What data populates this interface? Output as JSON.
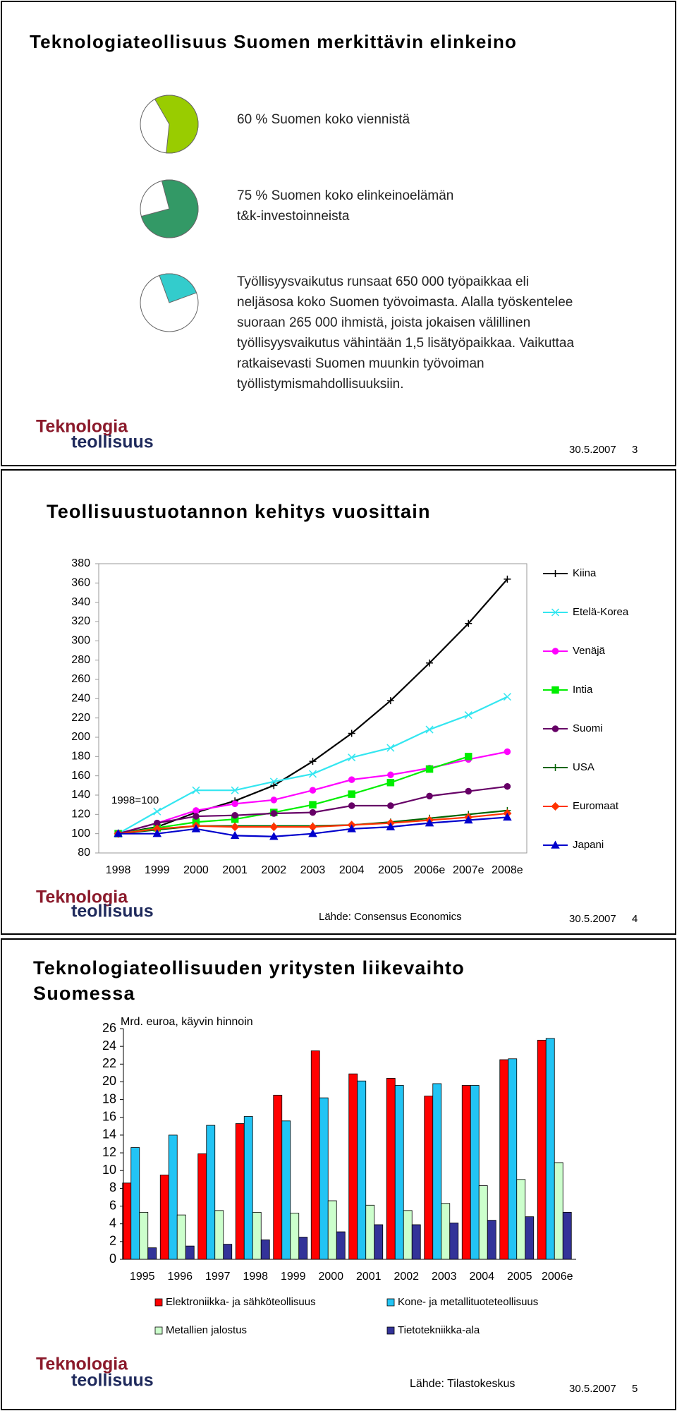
{
  "logo": [
    "Teknologia",
    "teollisuus"
  ],
  "slides": [
    {
      "title": "Teknologiateollisuus Suomen merkittävin elinkeino",
      "items": [
        {
          "share": 60,
          "color": "#99cc00",
          "lines": [
            "60 % Suomen koko viennistä"
          ]
        },
        {
          "share": 75,
          "color": "#339966",
          "lines": [
            "75 % Suomen koko elinkeinoelämän",
            "t&k-investoinneista"
          ]
        },
        {
          "share": 25,
          "color": "#33cccc",
          "lines": [
            "Työllisyysvaikutus runsaat 650 000 työpaikkaa eli",
            "neljäsosa koko Suomen työvoimasta. Alalla työskentelee",
            "suoraan 265 000 ihmistä, joista jokaisen välillinen",
            "työllisyysvaikutus vähintään 1,5 lisätyöpaikkaa. Vaikuttaa",
            "ratkaisevasti Suomen muunkin työvoiman",
            "työllistymismahdollisuuksiin."
          ]
        }
      ],
      "date": "30.5.2007",
      "page": "3"
    },
    {
      "title": "Teollisuustuotannon kehitys vuosittain",
      "chart_data": {
        "type": "line",
        "annotation": "1998=100",
        "categories": [
          "1998",
          "1999",
          "2000",
          "2001",
          "2002",
          "2003",
          "2004",
          "2005",
          "2006e",
          "2007e",
          "2008e"
        ],
        "ylim": [
          80,
          380
        ],
        "yticks": [
          80,
          100,
          120,
          140,
          160,
          180,
          200,
          220,
          240,
          260,
          280,
          300,
          320,
          340,
          360,
          380
        ],
        "series": [
          {
            "name": "Kiina",
            "color": "#000000",
            "marker": "plus",
            "values": [
              100,
              107,
              122,
              134,
              150,
              175,
              204,
              238,
              277,
              318,
              364
            ]
          },
          {
            "name": "Etelä-Korea",
            "color": "#33e6f0",
            "marker": "cross",
            "values": [
              100,
              123,
              145,
              145,
              154,
              162,
              179,
              189,
              208,
              223,
              242
            ]
          },
          {
            "name": "Venäjä",
            "color": "#ff00ff",
            "marker": "circle",
            "values": [
              100,
              111,
              124,
              131,
              135,
              145,
              156,
              161,
              168,
              177,
              185
            ]
          },
          {
            "name": "Intia",
            "color": "#00ee00",
            "marker": "square",
            "values": [
              100,
              106,
              112,
              115,
              122,
              130,
              141,
              153,
              167,
              180,
              null
            ]
          },
          {
            "name": "Suomi",
            "color": "#660066",
            "marker": "circle",
            "values": [
              100,
              111,
              118,
              119,
              121,
              122,
              129,
              129,
              139,
              144,
              149
            ]
          },
          {
            "name": "USA",
            "color": "#006600",
            "marker": "plus",
            "values": [
              100,
              104,
              108,
              108,
              108,
              108,
              109,
              112,
              116,
              120,
              124
            ]
          },
          {
            "name": "Euromaat",
            "color": "#ff3300",
            "marker": "diamond",
            "values": [
              100,
              105,
              108,
              107,
              107,
              107,
              109,
              111,
              114,
              117,
              121
            ]
          },
          {
            "name": "Japani",
            "color": "#0000cc",
            "marker": "triangle",
            "values": [
              100,
              100,
              105,
              98,
              97,
              100,
              105,
              107,
              111,
              114,
              117
            ]
          }
        ]
      },
      "source": "Lähde: Consensus Economics",
      "date": "30.5.2007",
      "page": "4"
    },
    {
      "title_lines": [
        "Teknologiateollisuuden yritysten liikevaihto",
        "Suomessa"
      ],
      "chart_data": {
        "type": "bar",
        "ylabel": "Mrd. euroa, käyvin hinnoin",
        "categories": [
          "1995",
          "1996",
          "1997",
          "1998",
          "1999",
          "2000",
          "2001",
          "2002",
          "2003",
          "2004",
          "2005",
          "2006e"
        ],
        "ylim": [
          0,
          26
        ],
        "yticks": [
          0,
          2,
          4,
          6,
          8,
          10,
          12,
          14,
          16,
          18,
          20,
          22,
          24,
          26
        ],
        "series": [
          {
            "name": "Elektroniikka- ja sähköteollisuus",
            "color": "#ff0000",
            "values": [
              8.6,
              9.5,
              11.9,
              15.3,
              18.5,
              23.5,
              20.9,
              20.4,
              18.4,
              19.6,
              22.5,
              24.7
            ]
          },
          {
            "name": "Kone- ja metallituoteteollisuus",
            "color": "#22c4f4",
            "values": [
              12.6,
              14.0,
              15.1,
              16.1,
              15.6,
              18.2,
              20.1,
              19.6,
              19.8,
              19.6,
              22.6,
              24.9
            ]
          },
          {
            "name": "Metallien jalostus",
            "color": "#ccffcc",
            "values": [
              5.3,
              5.0,
              5.5,
              5.3,
              5.2,
              6.6,
              6.1,
              5.5,
              6.3,
              8.3,
              9.0,
              10.9
            ]
          },
          {
            "name": "Tietotekniikka-ala",
            "color": "#333399",
            "values": [
              1.3,
              1.5,
              1.7,
              2.2,
              2.5,
              3.1,
              3.9,
              3.9,
              4.1,
              4.4,
              4.8,
              5.3
            ]
          }
        ]
      },
      "source": "Lähde: Tilastokeskus",
      "date": "30.5.2007",
      "page": "5"
    }
  ]
}
